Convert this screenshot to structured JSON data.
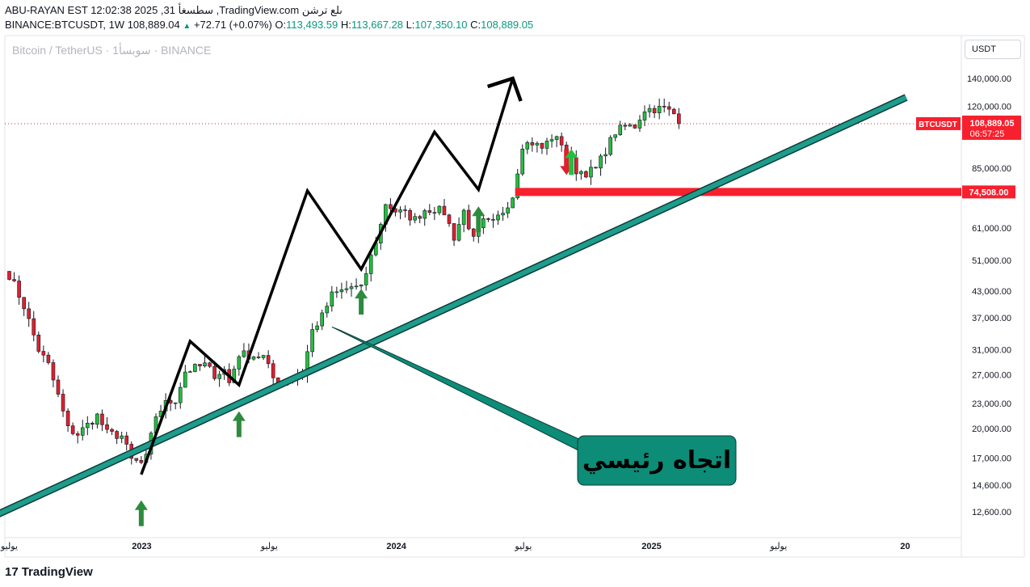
{
  "header": {
    "line1": "ABU-RAYAN EST 12:02:38 2025 ,31 سطسغأ ,TradingView.com ىلع ترشن",
    "symbol": "BINANCE:BTCUSDT, 1W",
    "last": "108,889.04",
    "change": "+72.71 (+0.07%)",
    "o_label": "O:",
    "o": "113,493.59",
    "h_label": "H:",
    "h": "113,667.28",
    "l_label": "L:",
    "l": "107,350.10",
    "c_label": "C:",
    "c": "108,889.05"
  },
  "watermark": "Bitcoin / TetherUS · 1سوبسأ · BINANCE",
  "currency_button": "USDT",
  "brand": {
    "logo": "17",
    "name": "TradingView"
  },
  "annotation": {
    "label": "اتجاه رئيسي"
  },
  "price_labels": {
    "symbol_tag": "BTCUSDT",
    "last_price": "108,889.05",
    "countdown": "06:57:25",
    "support_level": "74,508.00"
  },
  "colors": {
    "up": "#22c03c",
    "down": "#e0202e",
    "trendline": "#1e9c8c",
    "annotation_bg": "#0d8c78",
    "support": "#f7202e",
    "arrow_up": "#2e8b3e"
  },
  "chart_data": {
    "type": "candlestick",
    "scale": "log",
    "currency": "USDT",
    "y_ticks": [
      "140,000.00",
      "120,000.00",
      "85,000.00",
      "61,000.00",
      "51,000.00",
      "43,000.00",
      "37,000.00",
      "31,000.00",
      "27,000.00",
      "23,000.00",
      "20,000.00",
      "17,000.00",
      "14,600.00",
      "12,600.00"
    ],
    "y_tick_values": [
      140000,
      120000,
      85000,
      61000,
      51000,
      43000,
      37000,
      31000,
      27000,
      23000,
      20000,
      17000,
      14600,
      12600
    ],
    "ylim": [
      11500,
      160000
    ],
    "x_ticks": [
      {
        "label": "يوليو",
        "t": 0.0
      },
      {
        "label": "2023",
        "t": 27.1
      },
      {
        "label": "يوليو",
        "t": 53.2
      },
      {
        "label": "2024",
        "t": 79.2
      },
      {
        "label": "يوليو",
        "t": 105.2
      },
      {
        "label": "2025",
        "t": 131.4
      },
      {
        "label": "يوليو",
        "t": 157.4
      },
      {
        "label": "20",
        "t": 183.3
      }
    ],
    "waypoints": [
      [
        0,
        47000
      ],
      [
        1,
        44500
      ],
      [
        3,
        39500
      ],
      [
        6,
        31000
      ],
      [
        8,
        28500
      ],
      [
        10,
        24000
      ],
      [
        12,
        20000
      ],
      [
        14,
        19400
      ],
      [
        18,
        21500
      ],
      [
        20,
        19500
      ],
      [
        23,
        19200
      ],
      [
        25,
        16800
      ],
      [
        27,
        16500
      ],
      [
        28,
        17000
      ],
      [
        30,
        21500
      ],
      [
        32,
        23000
      ],
      [
        34,
        23500
      ],
      [
        36,
        27500
      ],
      [
        40,
        28500
      ],
      [
        42,
        27000
      ],
      [
        44,
        27700
      ],
      [
        45,
        25800
      ],
      [
        47,
        30300
      ],
      [
        50,
        30000
      ],
      [
        52,
        29800
      ],
      [
        54,
        26500
      ],
      [
        56,
        26000
      ],
      [
        58,
        26500
      ],
      [
        60,
        27200
      ],
      [
        62,
        34500
      ],
      [
        64,
        37300
      ],
      [
        66,
        42000
      ],
      [
        68,
        43000
      ],
      [
        70,
        44000
      ],
      [
        72,
        43500
      ],
      [
        74,
        52000
      ],
      [
        76,
        62000
      ],
      [
        77,
        70000
      ],
      [
        79,
        67000
      ],
      [
        81,
        66000
      ],
      [
        83,
        64000
      ],
      [
        85,
        67500
      ],
      [
        87,
        67800
      ],
      [
        89,
        66500
      ],
      [
        91,
        58000
      ],
      [
        93,
        67000
      ],
      [
        95,
        57000
      ],
      [
        97,
        63000
      ],
      [
        99,
        62500
      ],
      [
        101,
        67000
      ],
      [
        103,
        73000
      ],
      [
        105,
        97000
      ],
      [
        107,
        98000
      ],
      [
        109,
        95000
      ],
      [
        111,
        101000
      ],
      [
        113,
        98000
      ],
      [
        116,
        84000
      ],
      [
        118,
        83000
      ],
      [
        120,
        84500
      ],
      [
        122,
        94000
      ],
      [
        124,
        104000
      ],
      [
        126,
        107000
      ],
      [
        128,
        107500
      ],
      [
        130,
        118000
      ],
      [
        134,
        118500
      ],
      [
        136,
        115000
      ],
      [
        137,
        108889
      ]
    ],
    "last_close": 108889.05,
    "support_price": 74508.0,
    "series": []
  },
  "overlay": {
    "trendline": [
      [
        -6.5,
        11800
      ],
      [
        183.5,
        126000
      ]
    ],
    "zigzag": [
      [
        27,
        15500
      ],
      [
        37,
        32500
      ],
      [
        47,
        25500
      ],
      [
        61,
        75000
      ],
      [
        72,
        48500
      ],
      [
        87,
        104000
      ],
      [
        96,
        75500
      ],
      [
        103,
        140000
      ]
    ],
    "up_arrows": [
      {
        "t": 27,
        "price": 12500
      },
      {
        "t": 47,
        "price": 20500
      },
      {
        "t": 72,
        "price": 40500
      },
      {
        "t": 96,
        "price": 64000
      }
    ],
    "signal_arrows": [
      {
        "t": 114,
        "dir": "down",
        "price": 88000
      },
      {
        "t": 115,
        "dir": "up",
        "price": 88000
      }
    ]
  }
}
